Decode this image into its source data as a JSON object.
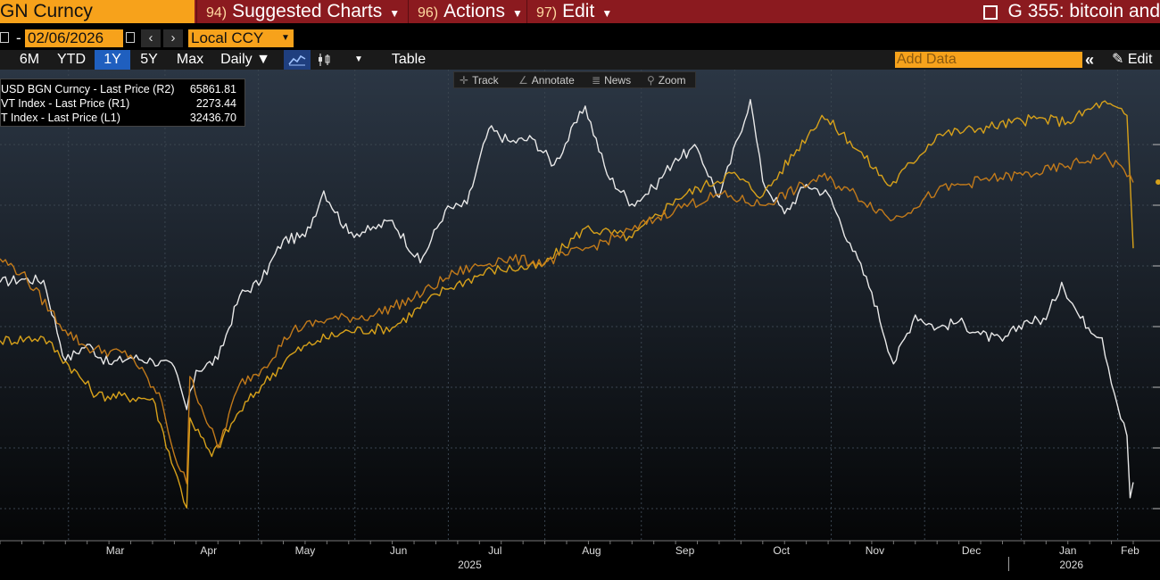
{
  "header": {
    "ticker": "GN Curncy",
    "menus": [
      {
        "num": "94)",
        "label": "Suggested Charts"
      },
      {
        "num": "96)",
        "label": "Actions"
      },
      {
        "num": "97)",
        "label": "Edit"
      }
    ],
    "window_title": "G 355: bitcoin and"
  },
  "daterow": {
    "dash": "-",
    "end_date": "02/06/2026",
    "currency": "Local CCY"
  },
  "toolbar": {
    "ranges": [
      "6M",
      "YTD",
      "1Y",
      "5Y",
      "Max"
    ],
    "active_range": "1Y",
    "frequency": "Daily ▼",
    "table_label": "Table",
    "add_data_placeholder": "Add Data",
    "edit_label": "Edit"
  },
  "mini_toolbar": {
    "track": "Track",
    "annotate": "Annotate",
    "news": "News",
    "zoom": "Zoom"
  },
  "colors": {
    "background": "#000000",
    "gold": "#d7a11a",
    "orange": "#c27a1a",
    "white_line": "#e8e8e8",
    "accent_blue": "#1f5fbf",
    "ticker_orange": "#f7a21b",
    "menu_red": "#8b1a1f"
  },
  "chart_data": {
    "type": "line",
    "legend_position": "top-left",
    "grid": true,
    "x_axis": {
      "months": [
        "Mar",
        "Apr",
        "May",
        "Jun",
        "Jul",
        "Aug",
        "Sep",
        "Oct",
        "Nov",
        "Dec",
        "Jan",
        "Feb"
      ],
      "years": [
        "2025",
        "2026"
      ]
    },
    "legend": [
      {
        "label": "USD BGN Curncy - Last Price (R2)",
        "value": "65861.81",
        "color": "#e8e8e8"
      },
      {
        "label": "VT Index - Last Price (R1)",
        "value": "2273.44",
        "color": "#d7a11a"
      },
      {
        "label": "T Index - Last Price (L1)",
        "value": "32436.70",
        "color": "#c27a1a"
      }
    ],
    "x_range": [
      "2025-02-07",
      "2026-02-06"
    ],
    "series": [
      {
        "name": "USD BGN Curncy - Last Price (R2)",
        "color": "#e8e8e8",
        "points": [
          [
            "2025-02-07",
            96500
          ],
          [
            "2025-02-14",
            97000
          ],
          [
            "2025-02-21",
            96800
          ],
          [
            "2025-02-28",
            84500
          ],
          [
            "2025-03-07",
            87000
          ],
          [
            "2025-03-14",
            84000
          ],
          [
            "2025-03-21",
            85000
          ],
          [
            "2025-03-28",
            84500
          ],
          [
            "2025-04-04",
            83500
          ],
          [
            "2025-04-08",
            77000
          ],
          [
            "2025-04-11",
            83000
          ],
          [
            "2025-04-18",
            84700
          ],
          [
            "2025-04-25",
            94500
          ],
          [
            "2025-05-02",
            96800
          ],
          [
            "2025-05-09",
            103000
          ],
          [
            "2025-05-16",
            103500
          ],
          [
            "2025-05-22",
            110500
          ],
          [
            "2025-05-30",
            104000
          ],
          [
            "2025-06-06",
            104500
          ],
          [
            "2025-06-13",
            106000
          ],
          [
            "2025-06-22",
            99500
          ],
          [
            "2025-06-30",
            107500
          ],
          [
            "2025-07-07",
            108500
          ],
          [
            "2025-07-14",
            120000
          ],
          [
            "2025-07-21",
            118000
          ],
          [
            "2025-07-28",
            118500
          ],
          [
            "2025-08-04",
            114500
          ],
          [
            "2025-08-14",
            123500
          ],
          [
            "2025-08-21",
            113000
          ],
          [
            "2025-08-29",
            108500
          ],
          [
            "2025-09-05",
            111000
          ],
          [
            "2025-09-12",
            115500
          ],
          [
            "2025-09-19",
            117000
          ],
          [
            "2025-09-26",
            109500
          ],
          [
            "2025-10-06",
            124500
          ],
          [
            "2025-10-10",
            112000
          ],
          [
            "2025-10-17",
            107000
          ],
          [
            "2025-10-24",
            111500
          ],
          [
            "2025-10-31",
            110000
          ],
          [
            "2025-11-07",
            102500
          ],
          [
            "2025-11-14",
            95000
          ],
          [
            "2025-11-21",
            84000
          ],
          [
            "2025-11-28",
            91500
          ],
          [
            "2025-12-05",
            89500
          ],
          [
            "2025-12-12",
            90500
          ],
          [
            "2025-12-19",
            88500
          ],
          [
            "2025-12-26",
            87500
          ],
          [
            "2026-01-02",
            90500
          ],
          [
            "2026-01-09",
            90800
          ],
          [
            "2026-01-14",
            96500
          ],
          [
            "2026-01-20",
            91000
          ],
          [
            "2026-01-27",
            88000
          ],
          [
            "2026-02-01",
            77500
          ],
          [
            "2026-02-04",
            73000
          ],
          [
            "2026-02-05",
            63500
          ],
          [
            "2026-02-06",
            65861.81
          ]
        ]
      },
      {
        "name": "VT Index - Last Price (R1)",
        "color": "#d7a11a",
        "points": [
          [
            "2025-02-07",
            2130
          ],
          [
            "2025-02-21",
            2135
          ],
          [
            "2025-03-10",
            2045
          ],
          [
            "2025-03-28",
            2040
          ],
          [
            "2025-04-04",
            1930
          ],
          [
            "2025-04-08",
            1870
          ],
          [
            "2025-04-09",
            2010
          ],
          [
            "2025-04-16",
            1950
          ],
          [
            "2025-04-25",
            2020
          ],
          [
            "2025-05-02",
            2060
          ],
          [
            "2025-05-12",
            2110
          ],
          [
            "2025-05-20",
            2130
          ],
          [
            "2025-05-30",
            2145
          ],
          [
            "2025-06-13",
            2150
          ],
          [
            "2025-06-30",
            2210
          ],
          [
            "2025-07-15",
            2240
          ],
          [
            "2025-07-31",
            2245
          ],
          [
            "2025-08-14",
            2305
          ],
          [
            "2025-08-29",
            2290
          ],
          [
            "2025-09-12",
            2350
          ],
          [
            "2025-09-30",
            2390
          ],
          [
            "2025-10-10",
            2355
          ],
          [
            "2025-10-29",
            2480
          ],
          [
            "2025-11-07",
            2440
          ],
          [
            "2025-11-20",
            2370
          ],
          [
            "2025-12-05",
            2450
          ],
          [
            "2025-12-19",
            2460
          ],
          [
            "2026-01-06",
            2475
          ],
          [
            "2026-01-16",
            2470
          ],
          [
            "2026-01-27",
            2500
          ],
          [
            "2026-02-04",
            2480
          ],
          [
            "2026-02-06",
            2273.44
          ]
        ]
      },
      {
        "name": "T Index - Last Price (L1)",
        "color": "#c27a1a",
        "points": [
          [
            "2025-02-07",
            30300
          ],
          [
            "2025-02-14",
            29900
          ],
          [
            "2025-02-28",
            28300
          ],
          [
            "2025-03-07",
            27800
          ],
          [
            "2025-03-21",
            27600
          ],
          [
            "2025-03-31",
            26300
          ],
          [
            "2025-04-04",
            24800
          ],
          [
            "2025-04-08",
            24000
          ],
          [
            "2025-04-09",
            27000
          ],
          [
            "2025-04-18",
            25000
          ],
          [
            "2025-04-25",
            26800
          ],
          [
            "2025-05-02",
            27200
          ],
          [
            "2025-05-12",
            28300
          ],
          [
            "2025-05-23",
            28600
          ],
          [
            "2025-06-06",
            28700
          ],
          [
            "2025-06-20",
            29200
          ],
          [
            "2025-07-03",
            29900
          ],
          [
            "2025-07-18",
            30300
          ],
          [
            "2025-08-01",
            30200
          ],
          [
            "2025-08-15",
            30600
          ],
          [
            "2025-08-29",
            31100
          ],
          [
            "2025-09-12",
            31700
          ],
          [
            "2025-09-26",
            32100
          ],
          [
            "2025-10-10",
            31800
          ],
          [
            "2025-10-29",
            32600
          ],
          [
            "2025-11-07",
            32200
          ],
          [
            "2025-11-21",
            31400
          ],
          [
            "2025-12-05",
            32200
          ],
          [
            "2025-12-19",
            32500
          ],
          [
            "2026-01-06",
            32700
          ],
          [
            "2026-01-16",
            32900
          ],
          [
            "2026-01-27",
            33200
          ],
          [
            "2026-02-03",
            32800
          ],
          [
            "2026-02-06",
            32436.7
          ]
        ]
      }
    ]
  }
}
